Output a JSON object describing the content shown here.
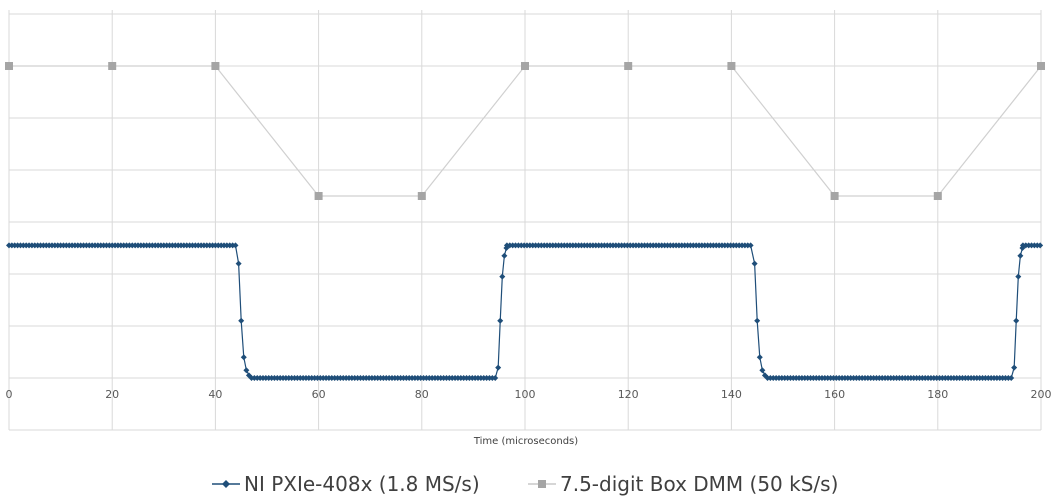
{
  "chart_data": {
    "type": "line",
    "title": "",
    "xlabel": "Time (microseconds)",
    "ylabel": "",
    "xlim": [
      0,
      200
    ],
    "ylim": [
      0,
      7
    ],
    "x_ticks": [
      0,
      20,
      40,
      60,
      80,
      100,
      120,
      140,
      160,
      180,
      200
    ],
    "y_tick_labels_shown": false,
    "grid": true,
    "legend_position": "bottom",
    "series": [
      {
        "name": "NI PXIe-408x (1.8 MS/s)",
        "color": "#1f4e79",
        "marker": "diamond",
        "segments": [
          {
            "from": 0,
            "to": 44,
            "step": 0.5556,
            "value": 2.55
          },
          {
            "from": 47,
            "to": 94.5,
            "step": 0.5556,
            "value": 0.0
          },
          {
            "from": 96.5,
            "to": 144,
            "step": 0.5556,
            "value": 2.55
          },
          {
            "from": 147,
            "to": 194.5,
            "step": 0.5556,
            "value": 0.0
          },
          {
            "from": 196.5,
            "to": 200,
            "step": 0.5556,
            "value": 2.55
          }
        ],
        "transition_points": [
          {
            "x": 44.5,
            "y": 2.2
          },
          {
            "x": 45.0,
            "y": 1.1
          },
          {
            "x": 45.5,
            "y": 0.4
          },
          {
            "x": 46.0,
            "y": 0.15
          },
          {
            "x": 46.5,
            "y": 0.05
          },
          {
            "x": 94.8,
            "y": 0.2
          },
          {
            "x": 95.2,
            "y": 1.1
          },
          {
            "x": 95.6,
            "y": 1.95
          },
          {
            "x": 96.0,
            "y": 2.35
          },
          {
            "x": 96.4,
            "y": 2.5
          },
          {
            "x": 144.5,
            "y": 2.2
          },
          {
            "x": 145.0,
            "y": 1.1
          },
          {
            "x": 145.5,
            "y": 0.4
          },
          {
            "x": 146.0,
            "y": 0.15
          },
          {
            "x": 146.5,
            "y": 0.05
          },
          {
            "x": 194.8,
            "y": 0.2
          },
          {
            "x": 195.2,
            "y": 1.1
          },
          {
            "x": 195.6,
            "y": 1.95
          },
          {
            "x": 196.0,
            "y": 2.35
          },
          {
            "x": 196.4,
            "y": 2.5
          }
        ]
      },
      {
        "name": "7.5-digit Box DMM (50 kS/s)",
        "color": "#a5a5a5",
        "marker": "square",
        "x": [
          0,
          20,
          40,
          60,
          80,
          100,
          120,
          140,
          160,
          180,
          200
        ],
        "values": [
          6.0,
          6.0,
          6.0,
          3.5,
          3.5,
          6.0,
          6.0,
          6.0,
          3.5,
          3.5,
          6.0
        ]
      }
    ]
  }
}
